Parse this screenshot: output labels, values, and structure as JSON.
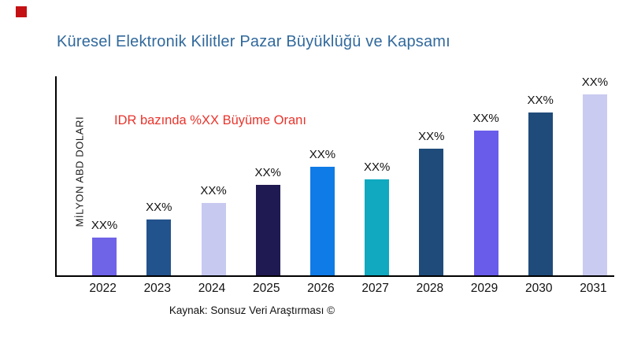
{
  "brand": {
    "logo_color": "#c41114"
  },
  "title": {
    "text": "Küresel Elektronik Kilitler Pazar Büyüklüğü ve Kapsamı",
    "color": "#31699c"
  },
  "y_axis_label": "MİLYON ABD DOLARI",
  "annotation": {
    "text": "IDR bazında %XX Büyüme Oranı",
    "color": "#e9342c"
  },
  "source": "Kaynak: Sonsuz Veri Araştırması ©",
  "chart_data": {
    "type": "bar",
    "title": "Küresel Elektronik Kilitler Pazar Büyüklüğü ve Kapsamı",
    "xlabel": "",
    "ylabel": "MİLYON ABD DOLARI",
    "categories": [
      "2022",
      "2023",
      "2024",
      "2025",
      "2026",
      "2027",
      "2028",
      "2029",
      "2030",
      "2031"
    ],
    "values_relative": [
      21,
      31,
      40,
      50,
      60,
      53,
      70,
      80,
      90,
      100
    ],
    "values_note": "Actual values are masked in the source image; every bar carries the placeholder label 'XX%'. values_relative are bar heights normalized to tallest bar (2031) = 100.",
    "bar_labels": [
      "XX%",
      "XX%",
      "XX%",
      "XX%",
      "XX%",
      "XX%",
      "XX%",
      "XX%",
      "XX%",
      "XX%"
    ],
    "bar_colors": [
      "#6f63e8",
      "#22538c",
      "#c7c9f1",
      "#201a52",
      "#0f7be6",
      "#10a9bf",
      "#1f4b7a",
      "#695cea",
      "#1f4b7a",
      "#c9cbf1"
    ],
    "annotation": "IDR bazında %XX Büyüme Oranı",
    "source": "Kaynak: Sonsuz Veri Araştırması ©",
    "axis_color": "#000000",
    "grid": false,
    "legend": false
  }
}
